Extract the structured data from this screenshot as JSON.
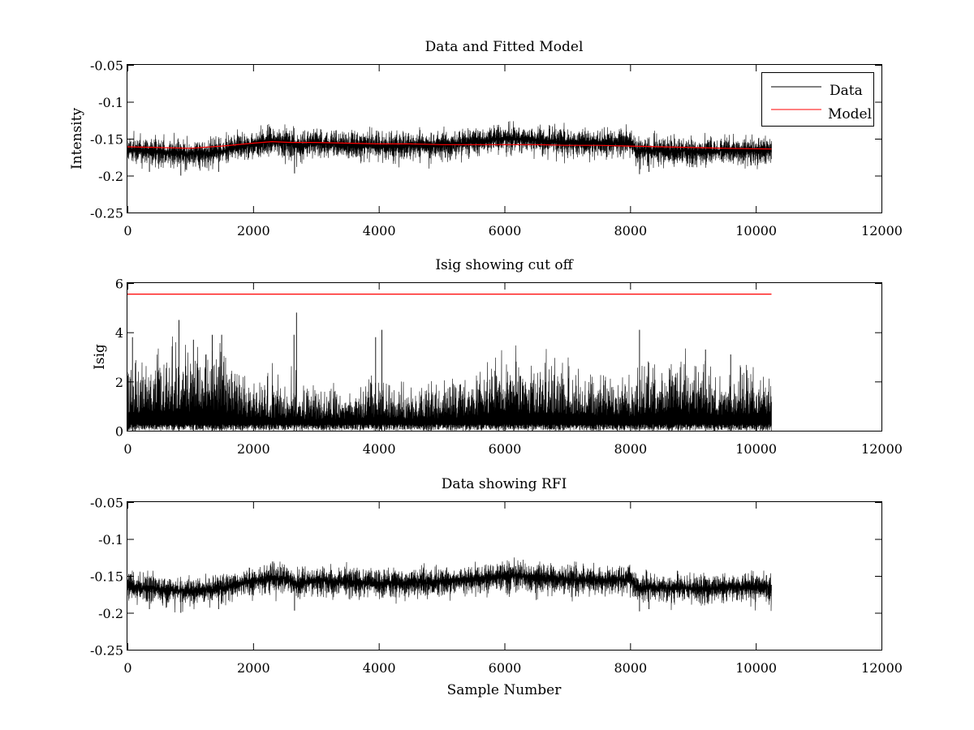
{
  "chart_data": [
    {
      "type": "line",
      "title": "Data and Fitted Model",
      "xlabel": "",
      "ylabel": "Intensity",
      "xlim": [
        0,
        12000
      ],
      "ylim": [
        -0.25,
        -0.05
      ],
      "xticks": [
        0,
        2000,
        4000,
        6000,
        8000,
        10000,
        12000
      ],
      "yticks": [
        -0.25,
        -0.2,
        -0.15,
        -0.1,
        -0.05
      ],
      "ytick_labels": [
        "-0.25",
        "-0.2",
        "-0.15",
        "-0.1",
        "-0.05"
      ],
      "legend": {
        "position": "top-right",
        "entries": [
          "Data",
          "Model"
        ]
      },
      "series": [
        {
          "name": "Data",
          "color": "#000000",
          "style": "noisy",
          "x": [
            0,
            500,
            1000,
            1500,
            2000,
            2300,
            2500,
            2700,
            3000,
            3500,
            4000,
            4500,
            5000,
            5500,
            6000,
            6300,
            6500,
            7000,
            7500,
            8000,
            8100,
            8500,
            9000,
            9500,
            10000,
            10250
          ],
          "y": [
            -0.165,
            -0.168,
            -0.171,
            -0.167,
            -0.157,
            -0.152,
            -0.154,
            -0.16,
            -0.156,
            -0.158,
            -0.16,
            -0.159,
            -0.158,
            -0.155,
            -0.15,
            -0.15,
            -0.153,
            -0.155,
            -0.156,
            -0.155,
            -0.166,
            -0.166,
            -0.167,
            -0.166,
            -0.165,
            -0.165
          ],
          "noise_amplitude": 0.01,
          "spikes": [
            {
              "x": 350,
              "y": -0.195
            },
            {
              "x": 850,
              "y": -0.2
            },
            {
              "x": 1450,
              "y": -0.195
            },
            {
              "x": 2280,
              "y": -0.136
            },
            {
              "x": 2660,
              "y": -0.197
            },
            {
              "x": 2800,
              "y": -0.14
            },
            {
              "x": 4000,
              "y": -0.142
            },
            {
              "x": 5900,
              "y": -0.137
            },
            {
              "x": 6230,
              "y": -0.135
            },
            {
              "x": 8150,
              "y": -0.198
            },
            {
              "x": 8300,
              "y": -0.195
            }
          ]
        },
        {
          "name": "Model",
          "color": "#ff0000",
          "style": "smooth",
          "x": [
            0,
            500,
            1000,
            1500,
            2000,
            2300,
            2600,
            3000,
            3500,
            4000,
            4500,
            5000,
            5500,
            6000,
            6500,
            7000,
            7500,
            8000,
            8500,
            9000,
            9500,
            10250
          ],
          "y": [
            -0.161,
            -0.162,
            -0.163,
            -0.16,
            -0.156,
            -0.154,
            -0.155,
            -0.155,
            -0.156,
            -0.157,
            -0.157,
            -0.158,
            -0.158,
            -0.158,
            -0.158,
            -0.159,
            -0.159,
            -0.16,
            -0.161,
            -0.162,
            -0.163,
            -0.164
          ]
        }
      ]
    },
    {
      "type": "line",
      "title": "Isig showing cut off",
      "xlabel": "",
      "ylabel": "Isig",
      "xlim": [
        0,
        12000
      ],
      "ylim": [
        0,
        6
      ],
      "xticks": [
        0,
        2000,
        4000,
        6000,
        8000,
        10000,
        12000
      ],
      "yticks": [
        0,
        2,
        4,
        6
      ],
      "ytick_labels": [
        "0",
        "2",
        "4",
        "6"
      ],
      "series": [
        {
          "color": "#000000",
          "style": "abs-noise",
          "x": [
            0,
            500,
            1000,
            1500,
            2000,
            2500,
            3000,
            3500,
            4000,
            4500,
            5000,
            5500,
            6000,
            6500,
            7000,
            7500,
            8000,
            8500,
            9000,
            9500,
            10000,
            10250
          ],
          "y": [
            1.2,
            1.3,
            1.3,
            1.3,
            0.8,
            0.9,
            0.7,
            0.8,
            0.9,
            0.8,
            0.8,
            1.0,
            1.3,
            1.1,
            1.1,
            1.0,
            0.9,
            1.2,
            1.1,
            1.0,
            1.0,
            0.9
          ],
          "spikes": [
            {
              "x": 80,
              "y": 3.8
            },
            {
              "x": 820,
              "y": 4.5
            },
            {
              "x": 1050,
              "y": 3.7
            },
            {
              "x": 1350,
              "y": 3.9
            },
            {
              "x": 1500,
              "y": 3.9
            },
            {
              "x": 2650,
              "y": 3.9
            },
            {
              "x": 2690,
              "y": 4.8
            },
            {
              "x": 3950,
              "y": 3.8
            },
            {
              "x": 4050,
              "y": 4.1
            },
            {
              "x": 8150,
              "y": 4.1
            },
            {
              "x": 9200,
              "y": 3.3
            },
            {
              "x": 9600,
              "y": 3.1
            }
          ]
        },
        {
          "color": "#ff0000",
          "style": "smooth",
          "x": [
            0,
            10250
          ],
          "y": [
            5.55,
            5.55
          ]
        }
      ]
    },
    {
      "type": "line",
      "title": "Data showing RFI",
      "xlabel": "Sample Number",
      "ylabel": "",
      "xlim": [
        0,
        12000
      ],
      "ylim": [
        -0.25,
        -0.05
      ],
      "xticks": [
        0,
        2000,
        4000,
        6000,
        8000,
        10000,
        12000
      ],
      "yticks": [
        -0.25,
        -0.2,
        -0.15,
        -0.1,
        -0.05
      ],
      "ytick_labels": [
        "-0.25",
        "-0.2",
        "-0.15",
        "-0.1",
        "-0.05"
      ],
      "series": [
        {
          "color": "#000000",
          "style": "noisy",
          "x": [
            0,
            500,
            1000,
            1500,
            2000,
            2300,
            2500,
            2700,
            3000,
            3500,
            4000,
            4500,
            5000,
            5500,
            6000,
            6300,
            6500,
            7000,
            7500,
            8000,
            8100,
            8500,
            9000,
            9500,
            10000,
            10250
          ],
          "y": [
            -0.165,
            -0.168,
            -0.171,
            -0.167,
            -0.157,
            -0.152,
            -0.154,
            -0.16,
            -0.156,
            -0.158,
            -0.16,
            -0.159,
            -0.158,
            -0.155,
            -0.15,
            -0.15,
            -0.153,
            -0.155,
            -0.156,
            -0.155,
            -0.166,
            -0.166,
            -0.167,
            -0.166,
            -0.165,
            -0.165
          ],
          "noise_amplitude": 0.01,
          "spikes": [
            {
              "x": 350,
              "y": -0.195
            },
            {
              "x": 850,
              "y": -0.2
            },
            {
              "x": 1450,
              "y": -0.195
            },
            {
              "x": 2280,
              "y": -0.136
            },
            {
              "x": 2660,
              "y": -0.197
            },
            {
              "x": 2800,
              "y": -0.14
            },
            {
              "x": 4000,
              "y": -0.142
            },
            {
              "x": 5900,
              "y": -0.137
            },
            {
              "x": 6230,
              "y": -0.135
            },
            {
              "x": 8150,
              "y": -0.198
            },
            {
              "x": 8300,
              "y": -0.195
            }
          ]
        }
      ]
    }
  ]
}
